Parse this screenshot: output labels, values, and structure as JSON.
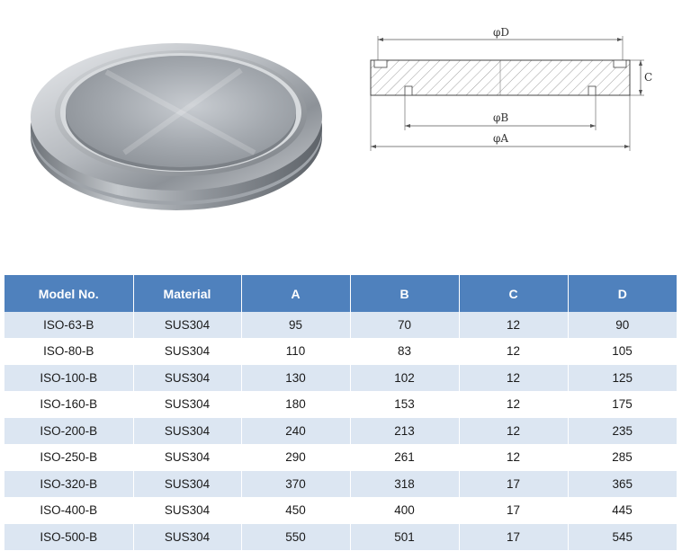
{
  "drawing": {
    "label_D": "φD",
    "label_B": "φB",
    "label_A": "φA",
    "label_C": "C"
  },
  "table": {
    "headers": [
      "Model No.",
      "Material",
      "A",
      "B",
      "C",
      "D"
    ],
    "rows": [
      [
        "ISO-63-B",
        "SUS304",
        "95",
        "70",
        "12",
        "90"
      ],
      [
        "ISO-80-B",
        "SUS304",
        "110",
        "83",
        "12",
        "105"
      ],
      [
        "ISO-100-B",
        "SUS304",
        "130",
        "102",
        "12",
        "125"
      ],
      [
        "ISO-160-B",
        "SUS304",
        "180",
        "153",
        "12",
        "175"
      ],
      [
        "ISO-200-B",
        "SUS304",
        "240",
        "213",
        "12",
        "235"
      ],
      [
        "ISO-250-B",
        "SUS304",
        "290",
        "261",
        "12",
        "285"
      ],
      [
        "ISO-320-B",
        "SUS304",
        "370",
        "318",
        "17",
        "365"
      ],
      [
        "ISO-400-B",
        "SUS304",
        "450",
        "400",
        "17",
        "445"
      ],
      [
        "ISO-500-B",
        "SUS304",
        "550",
        "501",
        "17",
        "545"
      ]
    ]
  },
  "colors": {
    "header_bg": "#4f81bd",
    "row_band": "#dce6f2"
  }
}
